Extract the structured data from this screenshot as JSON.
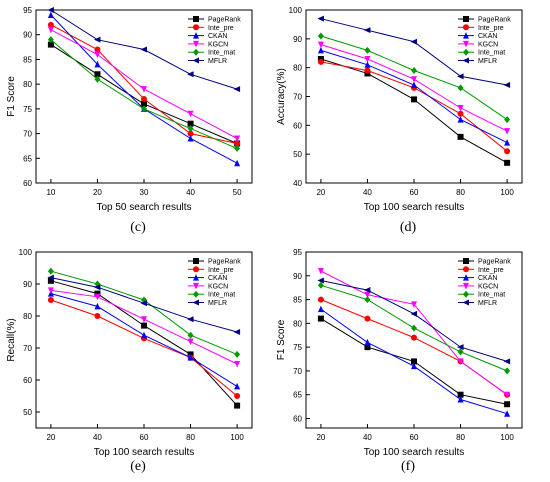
{
  "colors": {
    "PageRank": "#000000",
    "Inte_pre": "#ff0000",
    "CKAN": "#0000ff",
    "KGCN": "#ff00ff",
    "Inte_mat": "#009900",
    "MFLR": "#000080"
  },
  "markers": {
    "PageRank": "square",
    "Inte_pre": "circle",
    "CKAN": "triangle-up",
    "KGCN": "triangle-down",
    "Inte_mat": "diamond",
    "MFLR": "triangle-left"
  },
  "chart_data": [
    {
      "type": "line",
      "panel": "(c)",
      "title": "",
      "xlabel": "Top 50 search results",
      "ylabel": "F1 Score",
      "x": [
        10,
        20,
        30,
        40,
        50
      ],
      "xticks": [
        "10",
        "20",
        "30",
        "40",
        "50"
      ],
      "ylim": [
        60,
        95
      ],
      "yticks": [
        "60",
        "65",
        "70",
        "75",
        "80",
        "85",
        "90",
        "95"
      ],
      "legend_position": "top-right",
      "grid": false,
      "series": [
        {
          "name": "PageRank",
          "values": [
            88,
            82,
            76,
            72,
            68
          ]
        },
        {
          "name": "Inte_pre",
          "values": [
            92,
            87,
            77,
            70,
            68
          ]
        },
        {
          "name": "CKAN",
          "values": [
            94,
            84,
            75,
            69,
            64
          ]
        },
        {
          "name": "KGCN",
          "values": [
            91,
            86,
            79,
            74,
            69
          ]
        },
        {
          "name": "Inte_mat",
          "values": [
            89,
            81,
            75,
            71,
            67
          ]
        },
        {
          "name": "MFLR",
          "values": [
            95,
            89,
            87,
            82,
            79
          ]
        }
      ]
    },
    {
      "type": "line",
      "panel": "(d)",
      "title": "",
      "xlabel": "Top 100 search results",
      "ylabel": "Accuracy(%)",
      "x": [
        20,
        40,
        60,
        80,
        100
      ],
      "xticks": [
        "20",
        "40",
        "60",
        "80",
        "100"
      ],
      "ylim": [
        40,
        100
      ],
      "yticks": [
        "40",
        "50",
        "60",
        "70",
        "80",
        "90",
        "100"
      ],
      "legend_position": "top-right",
      "grid": false,
      "series": [
        {
          "name": "PageRank",
          "values": [
            83,
            78,
            69,
            56,
            47
          ]
        },
        {
          "name": "Inte_pre",
          "values": [
            82,
            79,
            73,
            64,
            51
          ]
        },
        {
          "name": "CKAN",
          "values": [
            86,
            81,
            74,
            62,
            54
          ]
        },
        {
          "name": "KGCN",
          "values": [
            88,
            83,
            76,
            66,
            58
          ]
        },
        {
          "name": "Inte_mat",
          "values": [
            91,
            86,
            79,
            73,
            62
          ]
        },
        {
          "name": "MFLR",
          "values": [
            97,
            93,
            89,
            77,
            74
          ]
        }
      ]
    },
    {
      "type": "line",
      "panel": "(e)",
      "title": "",
      "xlabel": "Top 100 search results",
      "ylabel": "Recall(%)",
      "x": [
        20,
        40,
        60,
        80,
        100
      ],
      "xticks": [
        "20",
        "40",
        "60",
        "80",
        "100"
      ],
      "ylim": [
        45,
        100
      ],
      "yticks": [
        "50",
        "60",
        "70",
        "80",
        "90",
        "100"
      ],
      "legend_position": "top-right",
      "grid": false,
      "series": [
        {
          "name": "PageRank",
          "values": [
            91,
            87,
            77,
            68,
            52
          ]
        },
        {
          "name": "Inte_pre",
          "values": [
            85,
            80,
            73,
            67,
            55
          ]
        },
        {
          "name": "CKAN",
          "values": [
            87,
            83,
            74,
            67,
            58
          ]
        },
        {
          "name": "KGCN",
          "values": [
            88,
            86,
            79,
            72,
            65
          ]
        },
        {
          "name": "Inte_mat",
          "values": [
            94,
            90,
            85,
            74,
            68
          ]
        },
        {
          "name": "MFLR",
          "values": [
            92,
            89,
            84,
            79,
            75
          ]
        }
      ]
    },
    {
      "type": "line",
      "panel": "(f)",
      "title": "",
      "xlabel": "Top 100 search results",
      "ylabel": "F1 Score",
      "x": [
        20,
        40,
        60,
        80,
        100
      ],
      "xticks": [
        "20",
        "40",
        "60",
        "80",
        "100"
      ],
      "ylim": [
        58,
        95
      ],
      "yticks": [
        "60",
        "65",
        "70",
        "75",
        "80",
        "85",
        "90",
        "95"
      ],
      "legend_position": "top-right",
      "grid": false,
      "series": [
        {
          "name": "PageRank",
          "values": [
            81,
            75,
            72,
            65,
            63
          ]
        },
        {
          "name": "Inte_pre",
          "values": [
            85,
            81,
            77,
            72,
            65
          ]
        },
        {
          "name": "CKAN",
          "values": [
            83,
            76,
            71,
            64,
            61
          ]
        },
        {
          "name": "KGCN",
          "values": [
            91,
            86,
            84,
            72,
            65
          ]
        },
        {
          "name": "Inte_mat",
          "values": [
            88,
            85,
            79,
            74,
            70
          ]
        },
        {
          "name": "MFLR",
          "values": [
            89,
            87,
            82,
            75,
            72
          ]
        }
      ]
    }
  ]
}
